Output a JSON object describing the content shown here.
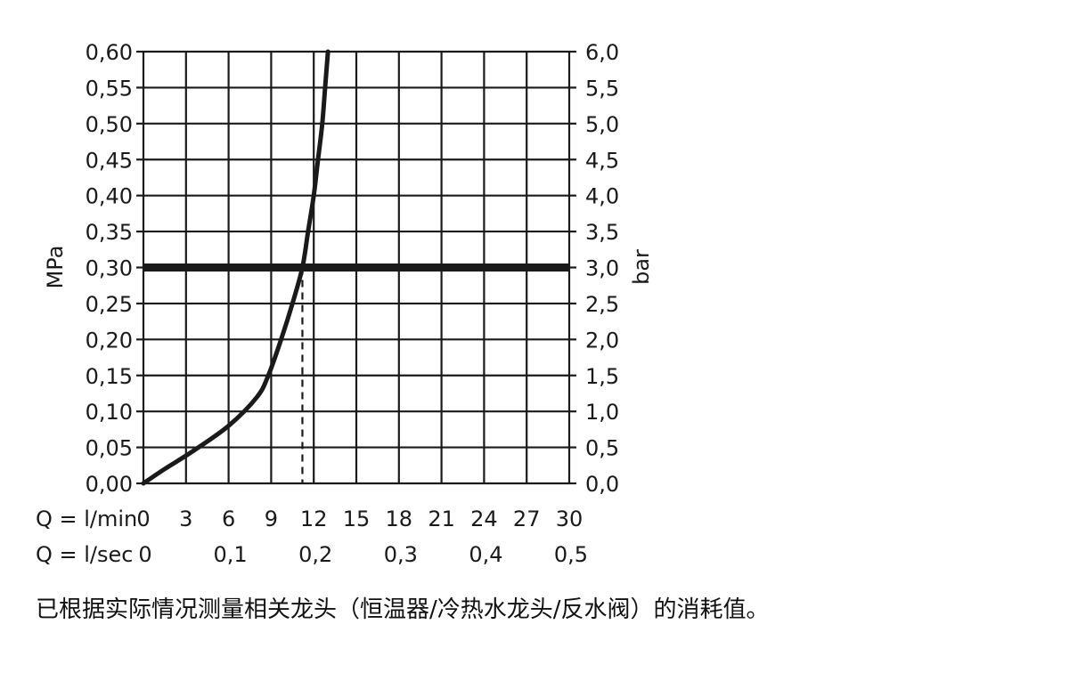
{
  "chart_data": {
    "type": "line",
    "title": "",
    "ylabel_left": "MPa",
    "ylabel_right": "bar",
    "ylim": [
      0,
      0.6
    ],
    "y_ticks_left": [
      "0,00",
      "0,05",
      "0,10",
      "0,15",
      "0,20",
      "0,25",
      "0,30",
      "0,35",
      "0,40",
      "0,45",
      "0,50",
      "0,55",
      "0,60"
    ],
    "y_ticks_right": [
      "0,0",
      "0,5",
      "1,0",
      "1,5",
      "2,0",
      "2,5",
      "3,0",
      "3,5",
      "4,0",
      "4,5",
      "5,0",
      "5,5",
      "6,0"
    ],
    "xlim": [
      0,
      30
    ],
    "x_axis_lmin": {
      "label": "Q = l/min",
      "ticks": [
        "0",
        "3",
        "6",
        "9",
        "12",
        "15",
        "18",
        "21",
        "24",
        "27",
        "30"
      ]
    },
    "x_axis_lsec": {
      "label": "Q = l/sec",
      "ticks": [
        {
          "text": "0",
          "at": 0
        },
        {
          "text": "0,1",
          "at": 6
        },
        {
          "text": "0,2",
          "at": 12
        },
        {
          "text": "0,3",
          "at": 18
        },
        {
          "text": "0,4",
          "at": 24
        },
        {
          "text": "0,5",
          "at": 30
        }
      ]
    },
    "grid": true,
    "series": [
      {
        "values": [
          [
            0,
            0
          ],
          [
            1.5,
            0.02
          ],
          [
            3.5,
            0.045
          ],
          [
            6,
            0.08
          ],
          [
            8,
            0.12
          ],
          [
            8.8,
            0.15
          ],
          [
            9.7,
            0.2
          ],
          [
            10.5,
            0.25
          ],
          [
            11.2,
            0.3
          ],
          [
            11.6,
            0.35
          ],
          [
            12.0,
            0.4
          ],
          [
            12.3,
            0.45
          ],
          [
            12.6,
            0.5
          ],
          [
            12.8,
            0.55
          ],
          [
            13.0,
            0.6
          ]
        ]
      }
    ],
    "reference_line": {
      "y": 0.3
    },
    "marker": {
      "x": 11.2,
      "y": 0.3
    }
  },
  "footnote": "已根据实际情况测量相关龙头（恒温器/冷热水龙头/反水阀）的消耗值。"
}
